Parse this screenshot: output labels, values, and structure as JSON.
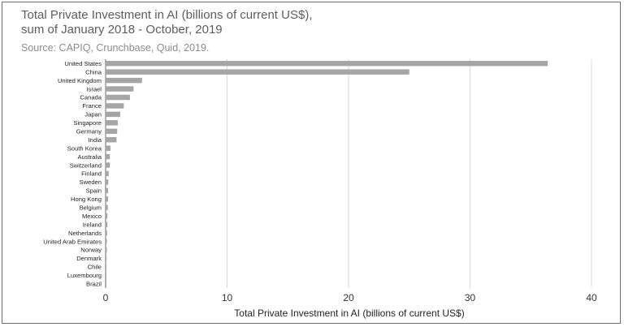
{
  "chart_data": {
    "type": "bar",
    "orientation": "horizontal",
    "title": "Total Private Investment in AI (billions of current US$),\nsum of January 2018 - October, 2019",
    "subtitle": "Source: CAPIQ, Crunchbase, Quid, 2019.",
    "xlabel": "Total Private Investment in AI (billions of current US$)",
    "ylabel": "",
    "xlim": [
      0,
      40
    ],
    "xticks": [
      0,
      10,
      20,
      30,
      40
    ],
    "grid": "vertical",
    "legend": "none",
    "bar_color": "#a6a6a6",
    "categories": [
      "United States",
      "China",
      "United Kingdom",
      "Israel",
      "Canada",
      "France",
      "Japan",
      "Singapore",
      "Germany",
      "India",
      "South Korea",
      "Australia",
      "Switzerland",
      "Finland",
      "Sweden",
      "Spain",
      "Hong Kong",
      "Belgium",
      "Mexico",
      "Ireland",
      "Netherlands",
      "United Arab Emirates",
      "Norway",
      "Denmark",
      "Chile",
      "Luxembourg",
      "Brazil"
    ],
    "values": [
      36.4,
      25.0,
      3.0,
      2.3,
      2.0,
      1.5,
      1.2,
      1.0,
      0.95,
      0.9,
      0.4,
      0.35,
      0.35,
      0.25,
      0.22,
      0.2,
      0.2,
      0.18,
      0.15,
      0.15,
      0.12,
      0.1,
      0.1,
      0.08,
      0.07,
      0.06,
      0.05
    ]
  }
}
